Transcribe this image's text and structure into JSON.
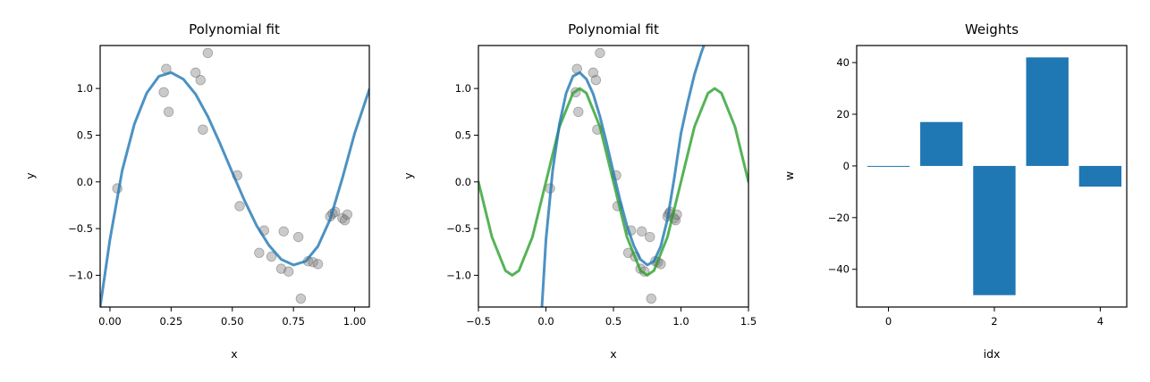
{
  "colors": {
    "fit_line": "#1f77b4",
    "true_curve": "#2ca02c",
    "points": "#808080",
    "bars": "#1f77b4"
  },
  "chart_data": [
    {
      "type": "scatter",
      "title": "Polynomial fit",
      "xlabel": "x",
      "ylabel": "y",
      "xlim": [
        -0.04,
        1.06
      ],
      "ylim": [
        -1.34,
        1.46
      ],
      "xticks": [
        "0.00",
        "0.25",
        "0.50",
        "0.75",
        "1.00"
      ],
      "xtick_values": [
        0,
        0.25,
        0.5,
        0.75,
        1.0
      ],
      "yticks": [
        "−1.0",
        "−0.5",
        "0.0",
        "0.5",
        "1.0"
      ],
      "ytick_values": [
        -1.0,
        -0.5,
        0.0,
        0.5,
        1.0
      ],
      "points": [
        [
          0.03,
          -0.07
        ],
        [
          0.22,
          0.96
        ],
        [
          0.23,
          1.21
        ],
        [
          0.24,
          0.75
        ],
        [
          0.35,
          1.17
        ],
        [
          0.37,
          1.09
        ],
        [
          0.38,
          0.56
        ],
        [
          0.4,
          1.38
        ],
        [
          0.52,
          0.07
        ],
        [
          0.53,
          -0.26
        ],
        [
          0.61,
          -0.76
        ],
        [
          0.63,
          -0.52
        ],
        [
          0.66,
          -0.8
        ],
        [
          0.7,
          -0.93
        ],
        [
          0.71,
          -0.53
        ],
        [
          0.73,
          -0.96
        ],
        [
          0.77,
          -0.59
        ],
        [
          0.78,
          -1.25
        ],
        [
          0.81,
          -0.85
        ],
        [
          0.83,
          -0.86
        ],
        [
          0.85,
          -0.88
        ],
        [
          0.9,
          -0.37
        ],
        [
          0.91,
          -0.34
        ],
        [
          0.92,
          -0.32
        ],
        [
          0.95,
          -0.39
        ],
        [
          0.96,
          -0.41
        ],
        [
          0.97,
          -0.35
        ]
      ],
      "series": [
        {
          "kind": "line",
          "color_key": "fit_line",
          "x": [
            -0.04,
            0.0,
            0.05,
            0.1,
            0.15,
            0.2,
            0.25,
            0.3,
            0.35,
            0.4,
            0.45,
            0.5,
            0.55,
            0.6,
            0.65,
            0.7,
            0.75,
            0.8,
            0.85,
            0.9,
            0.95,
            1.0,
            1.06
          ],
          "y": [
            -1.34,
            -0.62,
            0.12,
            0.62,
            0.95,
            1.13,
            1.17,
            1.1,
            0.94,
            0.7,
            0.41,
            0.1,
            -0.2,
            -0.47,
            -0.68,
            -0.83,
            -0.89,
            -0.85,
            -0.69,
            -0.4,
            0.04,
            0.52,
            0.99
          ]
        }
      ]
    },
    {
      "type": "scatter",
      "title": "Polynomial fit",
      "xlabel": "x",
      "ylabel": "y",
      "xlim": [
        -0.5,
        1.5
      ],
      "ylim": [
        -1.34,
        1.46
      ],
      "xticks": [
        "−0.5",
        "0.0",
        "0.5",
        "1.0",
        "1.5"
      ],
      "xtick_values": [
        -0.5,
        0.0,
        0.5,
        1.0,
        1.5
      ],
      "yticks": [
        "−1.0",
        "−0.5",
        "0.0",
        "0.5",
        "1.0"
      ],
      "ytick_values": [
        -1.0,
        -0.5,
        0.0,
        0.5,
        1.0
      ],
      "points": [
        [
          0.03,
          -0.07
        ],
        [
          0.22,
          0.96
        ],
        [
          0.23,
          1.21
        ],
        [
          0.24,
          0.75
        ],
        [
          0.35,
          1.17
        ],
        [
          0.37,
          1.09
        ],
        [
          0.38,
          0.56
        ],
        [
          0.4,
          1.38
        ],
        [
          0.52,
          0.07
        ],
        [
          0.53,
          -0.26
        ],
        [
          0.61,
          -0.76
        ],
        [
          0.63,
          -0.52
        ],
        [
          0.66,
          -0.8
        ],
        [
          0.7,
          -0.93
        ],
        [
          0.71,
          -0.53
        ],
        [
          0.73,
          -0.96
        ],
        [
          0.77,
          -0.59
        ],
        [
          0.78,
          -1.25
        ],
        [
          0.81,
          -0.85
        ],
        [
          0.83,
          -0.86
        ],
        [
          0.85,
          -0.88
        ],
        [
          0.9,
          -0.37
        ],
        [
          0.91,
          -0.34
        ],
        [
          0.92,
          -0.32
        ],
        [
          0.95,
          -0.39
        ],
        [
          0.96,
          -0.41
        ],
        [
          0.97,
          -0.35
        ]
      ],
      "series": [
        {
          "kind": "line",
          "color_key": "true_curve",
          "x": [
            -0.5,
            -0.4,
            -0.3,
            -0.25,
            -0.2,
            -0.1,
            0.0,
            0.1,
            0.2,
            0.25,
            0.3,
            0.4,
            0.5,
            0.6,
            0.7,
            0.75,
            0.8,
            0.9,
            1.0,
            1.1,
            1.2,
            1.25,
            1.3,
            1.4,
            1.5
          ],
          "y": [
            0.0,
            -0.59,
            -0.95,
            -1.0,
            -0.95,
            -0.59,
            0.0,
            0.59,
            0.95,
            1.0,
            0.95,
            0.59,
            0.0,
            -0.59,
            -0.95,
            -1.0,
            -0.95,
            -0.59,
            0.0,
            0.59,
            0.95,
            1.0,
            0.95,
            0.59,
            0.0
          ]
        },
        {
          "kind": "line",
          "color_key": "fit_line",
          "x": [
            -0.03,
            0.0,
            0.05,
            0.1,
            0.15,
            0.2,
            0.25,
            0.3,
            0.35,
            0.4,
            0.45,
            0.5,
            0.55,
            0.6,
            0.65,
            0.7,
            0.75,
            0.8,
            0.85,
            0.9,
            0.95,
            1.0,
            1.05,
            1.1,
            1.15,
            1.17
          ],
          "y": [
            -1.34,
            -0.62,
            0.12,
            0.62,
            0.95,
            1.13,
            1.17,
            1.1,
            0.94,
            0.7,
            0.41,
            0.1,
            -0.2,
            -0.47,
            -0.68,
            -0.83,
            -0.89,
            -0.85,
            -0.69,
            -0.4,
            0.04,
            0.52,
            0.85,
            1.15,
            1.38,
            1.46
          ]
        }
      ]
    },
    {
      "type": "bar",
      "title": "Weights",
      "xlabel": "idx",
      "ylabel": "w",
      "categories": [
        "0",
        "1",
        "2",
        "3",
        "4"
      ],
      "category_values": [
        0,
        1,
        2,
        3,
        4
      ],
      "values": [
        -0.3,
        17,
        -50,
        42,
        -8
      ],
      "xlim": [
        -0.6,
        4.5
      ],
      "ylim": [
        -54.6,
        46.6
      ],
      "xticks": [
        "0",
        "2",
        "4"
      ],
      "xtick_values": [
        0,
        2,
        4
      ],
      "yticks": [
        "−40",
        "−20",
        "0",
        "20",
        "40"
      ],
      "ytick_values": [
        -40,
        -20,
        0,
        20,
        40
      ]
    }
  ]
}
